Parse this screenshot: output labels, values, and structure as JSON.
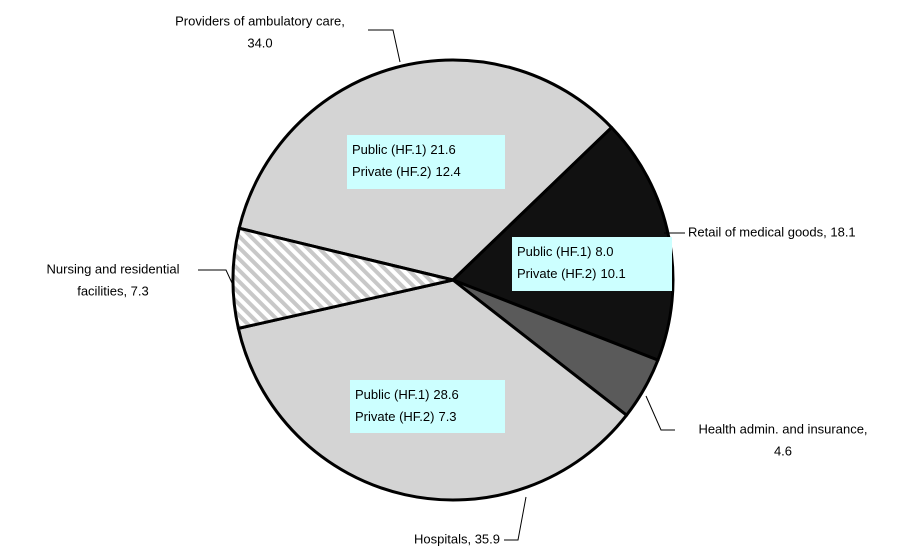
{
  "chart_data": {
    "type": "pie",
    "categories": [
      "Providers of ambulatory care",
      "Retail of medical goods",
      "Health admin. and insurance",
      "Hospitals",
      "Nursing and residential facilities"
    ],
    "values": [
      34.0,
      18.1,
      4.6,
      35.9,
      7.3
    ],
    "value_labels": [
      [
        "Providers of ambulatory care,",
        "34.0"
      ],
      [
        "Retail of medical goods, 18.1"
      ],
      [
        "Health admin. and insurance,",
        "4.6"
      ],
      [
        "Hospitals, 35.9"
      ],
      [
        "Nursing and residential",
        "facilities, 7.3"
      ]
    ],
    "colors": [
      "#d4d4d4",
      "#111111",
      "#5a5a5a",
      "#d4d4d4",
      "#ffffff"
    ],
    "hatch": [
      false,
      false,
      false,
      false,
      true
    ],
    "sub_series": [
      {
        "name": "Public (HF.1)",
        "values": [
          21.6,
          8.0,
          null,
          28.6,
          null
        ],
        "value_labels": [
          "21.6",
          "8.0",
          null,
          "28.6",
          null
        ]
      },
      {
        "name": "Private (HF.2)",
        "values": [
          12.4,
          10.1,
          null,
          7.3,
          null
        ],
        "value_labels": [
          "12.4",
          "10.1",
          null,
          "7.3",
          null
        ]
      }
    ],
    "box_color": "#ccffff"
  }
}
